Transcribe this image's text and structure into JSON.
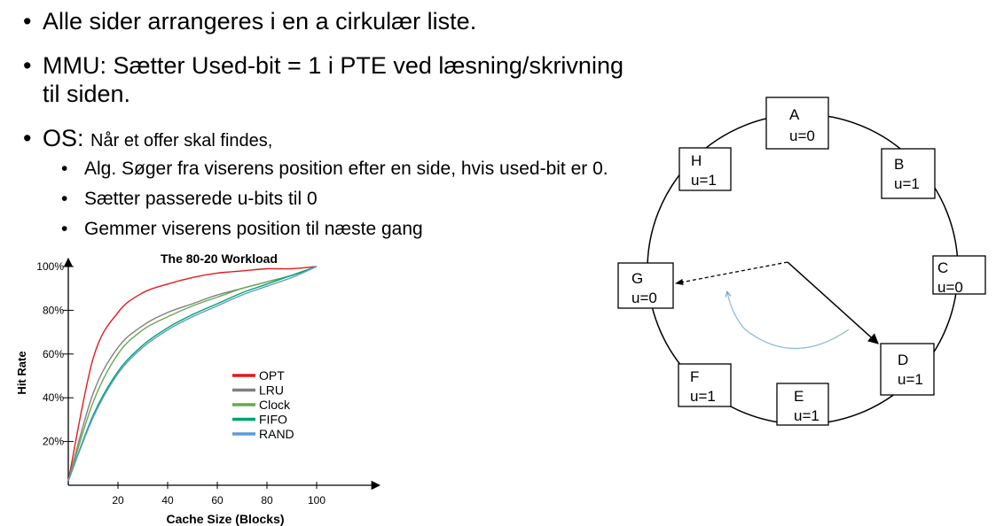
{
  "bullets": {
    "l1": "Alle sider arrangeres i en a cirkulær liste.",
    "l2_line1": "MMU: Sætter Used-bit = 1 i PTE ved læsning/skrivning",
    "l2_line2": "til siden.",
    "l3_prefix": "OS:",
    "l3_rest": "Når et offer skal findes,",
    "sub": [
      "Alg. Søger fra viserens position efter en side, hvis used-bit er 0.",
      "Sætter passerede u-bits til 0",
      "Gemmer viserens position til næste gang"
    ]
  },
  "clock": {
    "pages": [
      {
        "name": "A",
        "u": "u=0"
      },
      {
        "name": "B",
        "u": "u=1"
      },
      {
        "name": "C",
        "u": "u=0"
      },
      {
        "name": "D",
        "u": "u=1"
      },
      {
        "name": "E",
        "u": "u=1"
      },
      {
        "name": "F",
        "u": "u=1"
      },
      {
        "name": "G",
        "u": "u=0"
      },
      {
        "name": "H",
        "u": "u=1"
      }
    ]
  },
  "chart_data": {
    "type": "line",
    "title": "The 80-20 Workload",
    "xlabel": "Cache Size (Blocks)",
    "ylabel": "Hit Rate",
    "xlim": [
      0,
      100
    ],
    "ylim": [
      0,
      100
    ],
    "x_ticks": [
      20,
      40,
      60,
      80,
      100
    ],
    "y_ticks": [
      20,
      40,
      60,
      80,
      100
    ],
    "y_tick_labels": [
      "20%",
      "40%",
      "60%",
      "80%",
      "100%"
    ],
    "legend_position": "center-right",
    "x": [
      0,
      10,
      20,
      30,
      40,
      50,
      60,
      70,
      80,
      90,
      100
    ],
    "series": [
      {
        "name": "OPT",
        "color": "#e41a1c",
        "values": [
          2,
          58,
          79,
          88,
          92,
          95,
          97,
          98,
          99,
          99,
          100
        ]
      },
      {
        "name": "LRU",
        "color": "#808080",
        "values": [
          2,
          42,
          63,
          73,
          79,
          83,
          87,
          90,
          93,
          96,
          100
        ]
      },
      {
        "name": "Clock",
        "color": "#6aa84f",
        "values": [
          2,
          38,
          60,
          71,
          77,
          82,
          86,
          90,
          93,
          96,
          100
        ]
      },
      {
        "name": "FIFO",
        "color": "#00a36c",
        "values": [
          2,
          32,
          52,
          64,
          72,
          78,
          83,
          88,
          92,
          96,
          100
        ]
      },
      {
        "name": "RAND",
        "color": "#5b9bd5",
        "values": [
          2,
          31,
          51,
          63,
          71,
          77,
          82,
          87,
          91,
          95,
          100
        ]
      }
    ]
  }
}
